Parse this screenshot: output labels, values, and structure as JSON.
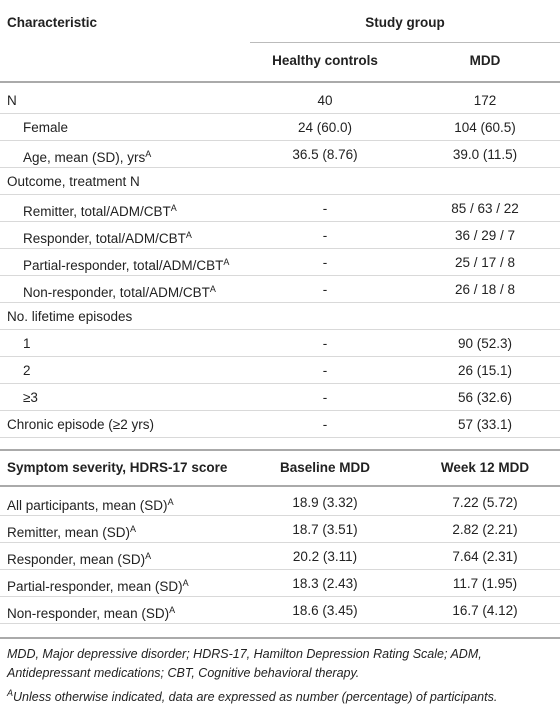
{
  "table": {
    "header": {
      "characteristic": "Characteristic",
      "study_group": "Study group",
      "columns": [
        "Healthy controls",
        "MDD"
      ]
    },
    "rows": [
      {
        "label": "N",
        "cells": [
          "40",
          "172"
        ]
      },
      {
        "label": "Female",
        "indent": true,
        "cells": [
          "24 (60.0)",
          "104 (60.5)"
        ]
      },
      {
        "label": "Age, mean (SD), yrs",
        "sup": "A",
        "indent": true,
        "cells": [
          "36.5 (8.76)",
          "39.0 (11.5)"
        ]
      },
      {
        "label": "Outcome, treatment N",
        "cells": []
      },
      {
        "label": "Remitter, total/ADM/CBT",
        "sup": "A",
        "indent": true,
        "cells": [
          "-",
          "85 / 63 / 22"
        ]
      },
      {
        "label": "Responder, total/ADM/CBT",
        "sup": "A",
        "indent": true,
        "cells": [
          "-",
          "36 / 29 / 7"
        ]
      },
      {
        "label": "Partial-responder, total/ADM/CBT",
        "sup": "A",
        "indent": true,
        "cells": [
          "-",
          "25 / 17 / 8"
        ]
      },
      {
        "label": "Non-responder, total/ADM/CBT",
        "sup": "A",
        "indent": true,
        "cells": [
          "-",
          "26 / 18 / 8"
        ]
      },
      {
        "label": "No. lifetime episodes",
        "cells": []
      },
      {
        "label": "1",
        "indent": true,
        "cells": [
          "-",
          "90 (52.3)"
        ]
      },
      {
        "label": "2",
        "indent": true,
        "cells": [
          "-",
          "26 (15.1)"
        ]
      },
      {
        "label": "≥3",
        "indent": true,
        "cells": [
          "-",
          "56 (32.6)"
        ]
      },
      {
        "label": "Chronic episode (≥2 yrs)",
        "cells": [
          "-",
          "57 (33.1)"
        ]
      }
    ],
    "section2": {
      "label": "Symptom severity, HDRS-17 score",
      "columns": [
        "Baseline MDD",
        "Week 12 MDD"
      ]
    },
    "rows2": [
      {
        "label": "All participants, mean (SD)",
        "sup": "A",
        "cells": [
          "18.9 (3.32)",
          "7.22 (5.72)"
        ]
      },
      {
        "label": "Remitter, mean (SD)",
        "sup": "A",
        "cells": [
          "18.7 (3.51)",
          "2.82 (2.21)"
        ]
      },
      {
        "label": "Responder, mean (SD)",
        "sup": "A",
        "cells": [
          "20.2 (3.11)",
          "7.64 (2.31)"
        ]
      },
      {
        "label": "Partial-responder, mean (SD)",
        "sup": "A",
        "cells": [
          "18.3 (2.43)",
          "11.7 (1.95)"
        ]
      },
      {
        "label": "Non-responder, mean (SD)",
        "sup": "A",
        "cells": [
          "18.6 (3.45)",
          "16.7 (4.12)"
        ]
      }
    ],
    "footnotes": [
      {
        "text": "MDD, Major depressive disorder; HDRS-17, Hamilton Depression Rating Scale; ADM, Antidepressant medications; CBT, Cognitive behavioral therapy."
      },
      {
        "sup": "A",
        "text": "Unless otherwise indicated, data are expressed as number (percentage) of participants."
      }
    ]
  }
}
